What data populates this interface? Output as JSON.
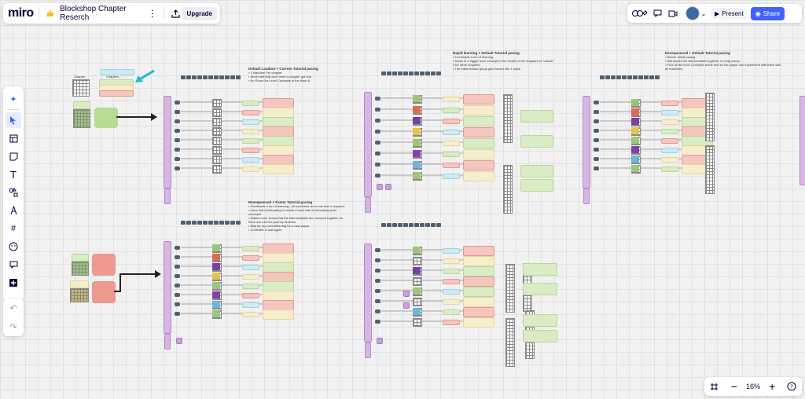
{
  "app": {
    "logo": "miro",
    "board_title": "Blockshop Chapter Reserch",
    "upgrade_label": "Upgrade"
  },
  "collab": {
    "present_label": "Present",
    "share_label": "Share"
  },
  "zoom": {
    "level": "16%"
  },
  "icons": {
    "thumbs": "thumbs-up-icon",
    "more": "more-vertical-icon",
    "export": "export-icon",
    "reactions": "reactions-icon",
    "comment": "comment-icon",
    "video": "video-icon",
    "chevron": "chevron-down-icon",
    "play": "play-icon",
    "share": "share-icon",
    "ai": "sparkle-icon",
    "select": "cursor-icon",
    "templates": "templates-icon",
    "sticky": "sticky-note-icon",
    "text": "text-icon",
    "shapes": "shapes-icon",
    "pen": "pen-icon",
    "frame": "frame-icon",
    "emoji": "emoji-icon",
    "comment_tool": "comment-tool-icon",
    "add": "add-icon",
    "undo": "undo-icon",
    "redo": "redo-icon",
    "fit": "fit-screen-icon",
    "zoom_out": "zoom-out-icon",
    "zoom_in": "zoom-in-icon",
    "help": "help-icon"
  },
  "colors": {
    "accent": "#4262ff",
    "lane": "#d7b6e4",
    "arrow_teal": "#21b8d1"
  },
  "board": {
    "legend": {
      "left_label": "Chapter",
      "right_label": "Chapters"
    },
    "notes": [
      {
        "title": "Default Loadout + Current Tutorial pacing",
        "lines": [
          "1 Machine Per chapter",
          "Shell inert that don't need a chapter get one",
          "No Room for Level Concepts in the base 8"
        ]
      },
      {
        "title": "Rapid learning + Default Tutorial pacing",
        "lines": [
          "Frontloads a ton of learning",
          "Mixes in a bigger level concept in the middle of the chapters to \"unlock\" it for other chapters",
          "The intermediate group gets forced into 1 block"
        ]
      },
      {
        "title": "Resequenced + Default Tutorial pacing",
        "lines": [
          "Slower Initial pacing",
          "Still blocks the intermediates together in a big clump",
          "Puts all the level Concepts at the end so the player can experiment with them with all machines"
        ]
      },
      {
        "title": "Resequenced + Faster Tutorial pacing",
        "lines": [
          "Frontloads a ton of learning - All machines are in the first 4 chapters",
          "Uses that frontloading to create a back half of interesting level concepts",
          "Makes more sense that the intermediates are clumped together as there are free the journey teaches",
          "May be too overwhelming for a new player",
          "Controller is lost again"
        ]
      }
    ]
  }
}
